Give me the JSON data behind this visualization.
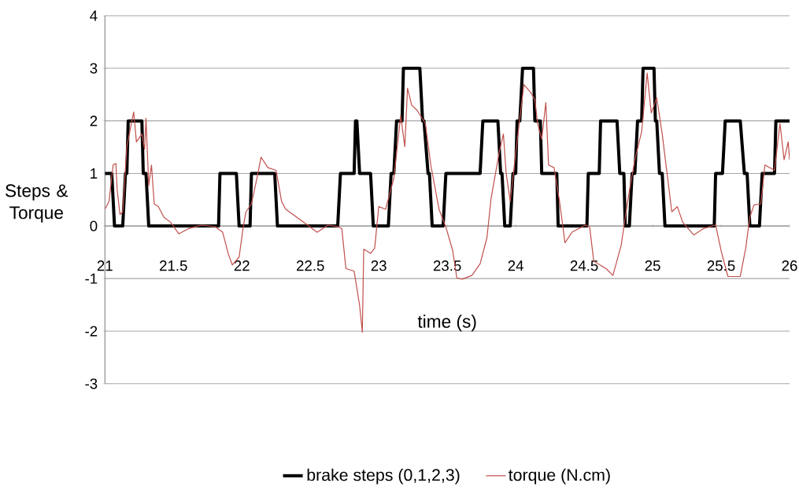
{
  "chart_data": {
    "type": "line",
    "xlabel": "time (s)",
    "ylabel": "Steps & Torque",
    "xlim": [
      21,
      26
    ],
    "xticks": [
      21,
      21.5,
      22,
      22.5,
      23,
      23.5,
      24,
      24.5,
      25,
      25.5,
      26
    ],
    "ylim": [
      -3,
      4
    ],
    "yticks": [
      -3,
      -2,
      -1,
      0,
      1,
      2,
      3,
      4
    ],
    "grid": "y",
    "legend": "bottom",
    "marker": "none",
    "line_style": "solid",
    "series": [
      {
        "name": "brake steps (0,1,2,3)",
        "color": "#000000",
        "x": [
          21.0,
          21.05,
          21.07,
          21.13,
          21.15,
          21.16,
          21.17,
          21.27,
          21.28,
          21.3,
          21.32,
          21.83,
          21.84,
          21.96,
          21.98,
          22.06,
          22.07,
          22.24,
          22.26,
          22.7,
          22.72,
          22.82,
          22.83,
          22.84,
          22.86,
          22.94,
          22.96,
          23.07,
          23.09,
          23.11,
          23.13,
          23.17,
          23.18,
          23.3,
          23.32,
          23.33,
          23.36,
          23.37,
          23.39,
          23.47,
          23.49,
          23.74,
          23.76,
          23.87,
          23.89,
          23.9,
          23.92,
          23.96,
          23.98,
          24.0,
          24.01,
          24.03,
          24.05,
          24.13,
          24.14,
          24.18,
          24.19,
          24.3,
          24.31,
          24.52,
          24.53,
          24.61,
          24.62,
          24.74,
          24.76,
          24.79,
          24.8,
          24.83,
          24.85,
          24.87,
          24.89,
          24.92,
          24.93,
          25.01,
          25.02,
          25.03,
          25.05,
          25.07,
          25.09,
          25.45,
          25.46,
          25.51,
          25.53,
          25.64,
          25.67,
          25.69,
          25.71,
          25.78,
          25.8,
          25.89,
          25.9,
          26.0
        ],
        "values": [
          1,
          1,
          0,
          0,
          1,
          1,
          2,
          2,
          1,
          1,
          0,
          0,
          1,
          1,
          0,
          0,
          1,
          1,
          0,
          0,
          1,
          1,
          2,
          2,
          1,
          1,
          0,
          0,
          1,
          1,
          2,
          2,
          3,
          3,
          2,
          2,
          1,
          1,
          0,
          0,
          1,
          1,
          2,
          2,
          1,
          1,
          0,
          0,
          1,
          1,
          2,
          2,
          3,
          3,
          2,
          2,
          1,
          1,
          0,
          0,
          1,
          1,
          2,
          2,
          1,
          1,
          0,
          0,
          1,
          1,
          2,
          2,
          3,
          3,
          2,
          2,
          1,
          1,
          0,
          0,
          1,
          1,
          2,
          2,
          1,
          1,
          0,
          0,
          1,
          1,
          2,
          2
        ]
      },
      {
        "name": "torque (N.cm)",
        "color": "#c0504d",
        "x": [
          21.0,
          21.03,
          21.06,
          21.08,
          21.09,
          21.11,
          21.13,
          21.16,
          21.21,
          21.23,
          21.27,
          21.29,
          21.3,
          21.32,
          21.34,
          21.36,
          21.39,
          21.43,
          21.48,
          21.54,
          21.61,
          21.71,
          21.81,
          21.86,
          21.9,
          21.93,
          21.98,
          22.01,
          22.03,
          22.07,
          22.11,
          22.14,
          22.19,
          22.25,
          22.29,
          22.32,
          22.4,
          22.5,
          22.55,
          22.63,
          22.71,
          22.73,
          22.76,
          22.82,
          22.86,
          22.88,
          22.89,
          22.94,
          22.97,
          23.0,
          23.05,
          23.11,
          23.16,
          23.19,
          23.21,
          23.24,
          23.28,
          23.34,
          23.38,
          23.44,
          23.49,
          23.54,
          23.57,
          23.61,
          23.68,
          23.74,
          23.79,
          23.82,
          23.88,
          23.91,
          23.93,
          23.96,
          23.99,
          24.03,
          24.06,
          24.11,
          24.14,
          24.16,
          24.19,
          24.22,
          24.24,
          24.28,
          24.32,
          24.36,
          24.41,
          24.51,
          24.54,
          24.57,
          24.66,
          24.71,
          24.77,
          24.8,
          24.83,
          24.87,
          24.92,
          24.96,
          24.99,
          25.03,
          25.07,
          25.1,
          25.14,
          25.18,
          25.22,
          25.3,
          25.37,
          25.46,
          25.5,
          25.55,
          25.64,
          25.68,
          25.71,
          25.74,
          25.79,
          25.82,
          25.89,
          25.93,
          25.96,
          25.99,
          26.0
        ],
        "values": [
          0.32,
          0.47,
          1.16,
          1.19,
          0.67,
          0.22,
          0.27,
          1.51,
          2.17,
          1.6,
          1.75,
          1.46,
          2.05,
          0.77,
          1.16,
          0.42,
          0.37,
          0.17,
          0.07,
          -0.15,
          -0.05,
          0.02,
          -0.02,
          -0.12,
          -0.52,
          -0.74,
          -0.59,
          -0.02,
          0.27,
          0.42,
          0.91,
          1.31,
          1.11,
          1.06,
          0.47,
          0.32,
          0.17,
          -0.02,
          -0.12,
          0.02,
          -0.02,
          -0.05,
          -0.81,
          -0.86,
          -1.51,
          -2.02,
          -0.44,
          -0.52,
          -0.42,
          0.37,
          0.32,
          0.91,
          2.1,
          1.51,
          2.62,
          2.3,
          2.2,
          1.95,
          1.16,
          0.32,
          -0.02,
          -0.47,
          -0.99,
          -1.01,
          -0.94,
          -0.72,
          -0.22,
          0.52,
          1.41,
          1.75,
          1.01,
          0.47,
          1.16,
          2.05,
          2.69,
          2.54,
          2.4,
          1.95,
          1.65,
          2.35,
          1.16,
          1.11,
          0.47,
          -0.32,
          -0.12,
          0.02,
          -0.02,
          -0.67,
          -0.81,
          -0.94,
          -0.37,
          0.17,
          0.67,
          1.26,
          1.8,
          2.91,
          2.15,
          2.44,
          1.75,
          1.11,
          0.27,
          0.37,
          0.07,
          -0.17,
          -0.05,
          0.02,
          -0.47,
          -0.96,
          -0.96,
          -0.42,
          0.17,
          0.4,
          0.42,
          1.16,
          1.06,
          1.95,
          1.26,
          1.6,
          1.26
        ]
      }
    ]
  }
}
